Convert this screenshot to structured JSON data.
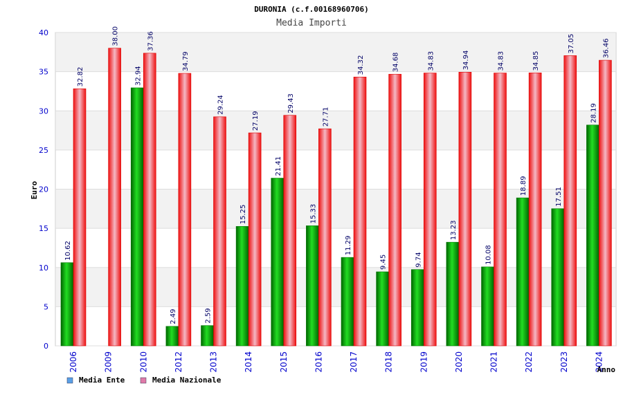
{
  "chart_data": {
    "type": "bar",
    "title": "DURONIA (c.f.00168960706)",
    "subtitle": "Media Importi",
    "xlabel": "Anno",
    "ylabel": "Euro",
    "ylim": [
      0,
      40
    ],
    "yticks": [
      0,
      5,
      10,
      15,
      20,
      25,
      30,
      35,
      40
    ],
    "grid": true,
    "legend_position": "bottom-left",
    "categories": [
      "2006",
      "2009",
      "2010",
      "2012",
      "2013",
      "2014",
      "2015",
      "2016",
      "2017",
      "2018",
      "2019",
      "2020",
      "2021",
      "2022",
      "2023",
      "2024"
    ],
    "series": [
      {
        "name": "Media Ente",
        "color": "#00aa00",
        "legend_color": "#5aa0e6",
        "values": [
          10.62,
          null,
          32.94,
          2.49,
          2.59,
          15.25,
          21.41,
          15.33,
          11.29,
          9.45,
          9.74,
          13.23,
          10.08,
          18.89,
          17.51,
          28.19
        ],
        "labels": [
          "10.62",
          "",
          "32.94",
          "2.49",
          "2.59",
          "15.25",
          "21.41",
          "15.33",
          "11.29",
          "9.45",
          "9.74",
          "13.23",
          "10.08",
          "18.89",
          "17.51",
          "28.19"
        ]
      },
      {
        "name": "Media Nazionale",
        "color": "#ee1111",
        "legend_color": "#e07aa8",
        "values": [
          32.82,
          38.0,
          37.36,
          34.79,
          29.24,
          27.19,
          29.43,
          27.71,
          34.32,
          34.68,
          34.83,
          34.94,
          34.83,
          34.85,
          37.05,
          36.46
        ],
        "labels": [
          "32.82",
          "38.00",
          "37.36",
          "34.79",
          "29.24",
          "27.19",
          "29.43",
          "27.71",
          "34.32",
          "34.68",
          "34.83",
          "34.94",
          "34.83",
          "34.85",
          "37.05",
          "36.46"
        ]
      }
    ]
  }
}
